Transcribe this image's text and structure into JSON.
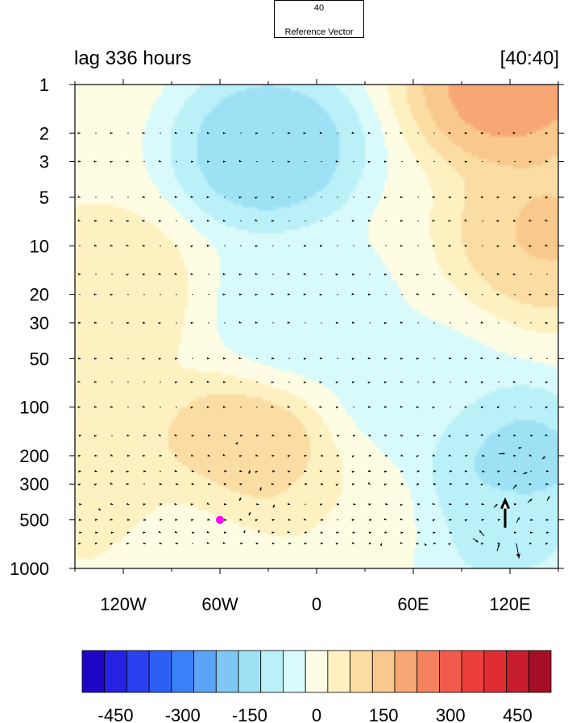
{
  "header": {
    "left_title": "lag 336 hours",
    "right_title": "[40:40]"
  },
  "reference_vector": {
    "magnitude_label": "40",
    "label": "Reference Vector",
    "magnitude": 40
  },
  "chart_data": {
    "type": "heatmap",
    "title": "",
    "xlabel": "",
    "ylabel": "",
    "x_units": "longitude (degrees east, west negative)",
    "y_units": "pressure level",
    "xlim": [
      -150,
      150
    ],
    "ylim": [
      1000,
      1
    ],
    "y_scale": "log",
    "x_ticks": [
      {
        "value": -120,
        "label": "120W"
      },
      {
        "value": -60,
        "label": "60W"
      },
      {
        "value": 0,
        "label": "0"
      },
      {
        "value": 60,
        "label": "60E"
      },
      {
        "value": 120,
        "label": "120E"
      }
    ],
    "y_ticks": [
      {
        "value": 1,
        "label": "1"
      },
      {
        "value": 2,
        "label": "2"
      },
      {
        "value": 3,
        "label": "3"
      },
      {
        "value": 5,
        "label": "5"
      },
      {
        "value": 10,
        "label": "10"
      },
      {
        "value": 20,
        "label": "20"
      },
      {
        "value": 30,
        "label": "30"
      },
      {
        "value": 50,
        "label": "50"
      },
      {
        "value": 100,
        "label": "100"
      },
      {
        "value": 200,
        "label": "200"
      },
      {
        "value": 300,
        "label": "300"
      },
      {
        "value": 500,
        "label": "500"
      },
      {
        "value": 1000,
        "label": "1000"
      }
    ],
    "colorbar": {
      "min": -525,
      "max": 525,
      "step": 50,
      "colors": [
        "#1f06c7",
        "#2522e3",
        "#2b40ef",
        "#2e5ff5",
        "#3b80f7",
        "#5ba4f5",
        "#7fc6f2",
        "#9ee1f5",
        "#baf0f7",
        "#d8fafa",
        "#fefde4",
        "#fdf1c1",
        "#fbdca3",
        "#f8c88c",
        "#f7a773",
        "#f5825e",
        "#f25b4b",
        "#ec3f3b",
        "#e02c33",
        "#c81d2d",
        "#a50f25"
      ],
      "tick_values": [
        -450,
        -300,
        -150,
        0,
        150,
        300,
        450
      ],
      "tick_labels": [
        "-450",
        "-300",
        "-150",
        "0",
        "150",
        "300",
        "450"
      ]
    },
    "field_features": [
      {
        "lon": -30,
        "p": 2.5,
        "value": -190
      },
      {
        "lon": -10,
        "p": 25,
        "value": -65
      },
      {
        "lon": 120,
        "p": 1,
        "value": 240
      },
      {
        "lon": 145,
        "p": 8,
        "value": 150
      },
      {
        "lon": -45,
        "p": 220,
        "value": 150
      },
      {
        "lon": -135,
        "p": 20,
        "value": 75
      },
      {
        "lon": -135,
        "p": 260,
        "value": 75
      },
      {
        "lon": 120,
        "p": 230,
        "value": -170
      },
      {
        "lon": 110,
        "p": 650,
        "value": -90
      },
      {
        "lon": 60,
        "p": 90,
        "value": -55
      },
      {
        "lon": -70,
        "p": 600,
        "value": -20
      },
      {
        "lon": 20,
        "p": 500,
        "value": 20
      }
    ],
    "marker": {
      "lon": -60,
      "p": 500,
      "color": "#ff00ff"
    },
    "vectors": [
      {
        "lon": 117,
        "p": 560,
        "u": 0,
        "v": 62
      },
      {
        "lon": 124,
        "p": 700,
        "u": 6,
        "v": -34
      },
      {
        "lon": 104,
        "p": 630,
        "u": -11,
        "v": 13
      },
      {
        "lon": 112,
        "p": 780,
        "u": 5,
        "v": 16
      },
      {
        "lon": 97,
        "p": 650,
        "u": 12,
        "v": -9
      },
      {
        "lon": 124,
        "p": 520,
        "u": 7,
        "v": 12
      },
      {
        "lon": 131,
        "p": 390,
        "u": 10,
        "v": 8
      },
      {
        "lon": 143,
        "p": 380,
        "u": 6,
        "v": 10
      },
      {
        "lon": 122,
        "p": 320,
        "u": 8,
        "v": 9
      },
      {
        "lon": 110,
        "p": 420,
        "u": 8,
        "v": 8
      },
      {
        "lon": 113,
        "p": 195,
        "u": 14,
        "v": 1
      },
      {
        "lon": 128,
        "p": 260,
        "u": 10,
        "v": 4
      },
      {
        "lon": 140,
        "p": 210,
        "u": 7,
        "v": 6
      },
      {
        "lon": 125,
        "p": 180,
        "u": 8,
        "v": 2
      },
      {
        "lon": 68,
        "p": 720,
        "u": -4,
        "v": 4
      },
      {
        "lon": 40,
        "p": 720,
        "u": 1,
        "v": 5
      },
      {
        "lon": -42,
        "p": 260,
        "u": 2,
        "v": 9
      },
      {
        "lon": -35,
        "p": 330,
        "u": 2,
        "v": 8
      },
      {
        "lon": -42,
        "p": 470,
        "u": 3,
        "v": 8
      },
      {
        "lon": -48,
        "p": 380,
        "u": 4,
        "v": 7
      },
      {
        "lon": -27,
        "p": 420,
        "u": 3,
        "v": 7
      },
      {
        "lon": -36,
        "p": 600,
        "u": 1,
        "v": 6
      },
      {
        "lon": -45,
        "p": 600,
        "u": 2,
        "v": 5
      },
      {
        "lon": -135,
        "p": 430,
        "u": 4,
        "v": -2
      },
      {
        "lon": -50,
        "p": 170,
        "u": 4,
        "v": 5
      }
    ]
  }
}
